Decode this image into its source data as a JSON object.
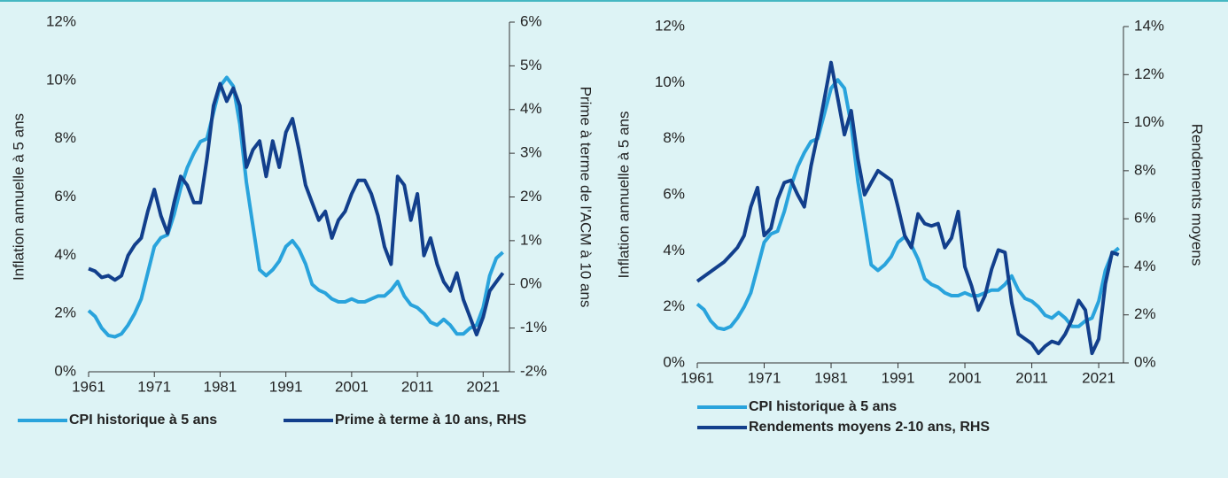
{
  "chart_data": [
    {
      "type": "line",
      "y_label": "Inflation annuelle à 5 ans",
      "y2_label": "Prime à terme de l'ACM à 10 ans",
      "x": [
        1961,
        1962,
        1963,
        1964,
        1965,
        1966,
        1967,
        1968,
        1969,
        1970,
        1971,
        1972,
        1973,
        1974,
        1975,
        1976,
        1977,
        1978,
        1979,
        1980,
        1981,
        1982,
        1983,
        1984,
        1985,
        1986,
        1987,
        1988,
        1989,
        1990,
        1991,
        1992,
        1993,
        1994,
        1995,
        1996,
        1997,
        1998,
        1999,
        2000,
        2001,
        2002,
        2003,
        2004,
        2005,
        2006,
        2007,
        2008,
        2009,
        2010,
        2011,
        2012,
        2013,
        2014,
        2015,
        2016,
        2017,
        2018,
        2019,
        2020,
        2021,
        2022,
        2023,
        2024
      ],
      "series": [
        {
          "name": "CPI historique à 5 ans",
          "color": "#29a3dc",
          "values": [
            2.1,
            1.9,
            1.5,
            1.25,
            1.2,
            1.3,
            1.6,
            2.0,
            2.5,
            3.4,
            4.3,
            4.6,
            4.7,
            5.4,
            6.3,
            7.0,
            7.5,
            7.9,
            8.0,
            8.9,
            9.8,
            10.1,
            9.8,
            8.5,
            6.5,
            5.0,
            3.5,
            3.3,
            3.5,
            3.8,
            4.3,
            4.5,
            4.2,
            3.7,
            3.0,
            2.8,
            2.7,
            2.5,
            2.4,
            2.4,
            2.5,
            2.4,
            2.4,
            2.5,
            2.6,
            2.6,
            2.8,
            3.1,
            2.6,
            2.3,
            2.2,
            2.0,
            1.7,
            1.6,
            1.8,
            1.6,
            1.3,
            1.3,
            1.5,
            1.6,
            2.2,
            3.3,
            3.9,
            4.1
          ]
        },
        {
          "name": "Prime à terme à 10 ans, RHS",
          "color": "#123f8c",
          "axis": "y2",
          "values": [
            0.36,
            0.3,
            0.16,
            0.2,
            0.1,
            0.2,
            0.66,
            0.9,
            1.06,
            1.67,
            2.17,
            1.57,
            1.17,
            1.87,
            2.47,
            2.27,
            1.87,
            1.87,
            2.88,
            4.09,
            4.59,
            4.19,
            4.49,
            4.09,
            2.68,
            3.08,
            3.28,
            2.47,
            3.28,
            2.68,
            3.48,
            3.79,
            3.08,
            2.27,
            1.87,
            1.47,
            1.67,
            1.06,
            1.47,
            1.67,
            2.07,
            2.38,
            2.38,
            2.07,
            1.57,
            0.86,
            0.46,
            2.47,
            2.27,
            1.47,
            2.07,
            0.66,
            1.06,
            0.46,
            0.06,
            -0.15,
            0.26,
            -0.35,
            -0.75,
            -1.15,
            -0.75,
            -0.15,
            0.06,
            0.26
          ]
        }
      ],
      "xlim": [
        1961,
        2025
      ],
      "xticks": [
        1961,
        1971,
        1981,
        1991,
        2001,
        2011,
        2021
      ],
      "ylim": [
        0,
        12
      ],
      "yticks": [
        {
          "value": 0,
          "label": "0%"
        },
        {
          "value": 2,
          "label": "2%"
        },
        {
          "value": 4,
          "label": "4%"
        },
        {
          "value": 6,
          "label": "6%"
        },
        {
          "value": 8,
          "label": "8%"
        },
        {
          "value": 10,
          "label": "10%"
        },
        {
          "value": 12,
          "label": "12%"
        }
      ],
      "y2lim": [
        -2,
        6
      ],
      "y2ticks": [
        {
          "value": -2,
          "label": "-2%"
        },
        {
          "value": -1,
          "label": "-1%"
        },
        {
          "value": 0,
          "label": "0%"
        },
        {
          "value": 1,
          "label": "1%"
        },
        {
          "value": 2,
          "label": "2%"
        },
        {
          "value": 3,
          "label": "3%"
        },
        {
          "value": 4,
          "label": "4%"
        },
        {
          "value": 5,
          "label": "5%"
        },
        {
          "value": 6,
          "label": "6%"
        }
      ],
      "legend": "bottom-row"
    },
    {
      "type": "line",
      "y_label": "Inflation annuelle à 5 ans",
      "y2_label": "Rendements moyens",
      "x": [
        1961,
        1962,
        1963,
        1964,
        1965,
        1966,
        1967,
        1968,
        1969,
        1970,
        1971,
        1972,
        1973,
        1974,
        1975,
        1976,
        1977,
        1978,
        1979,
        1980,
        1981,
        1982,
        1983,
        1984,
        1985,
        1986,
        1987,
        1988,
        1989,
        1990,
        1991,
        1992,
        1993,
        1994,
        1995,
        1996,
        1997,
        1998,
        1999,
        2000,
        2001,
        2002,
        2003,
        2004,
        2005,
        2006,
        2007,
        2008,
        2009,
        2010,
        2011,
        2012,
        2013,
        2014,
        2015,
        2016,
        2017,
        2018,
        2019,
        2020,
        2021,
        2022,
        2023,
        2024
      ],
      "series": [
        {
          "name": "CPI historique à 5 ans",
          "color": "#29a3dc",
          "values": [
            2.1,
            1.9,
            1.5,
            1.25,
            1.2,
            1.3,
            1.6,
            2.0,
            2.5,
            3.4,
            4.3,
            4.6,
            4.7,
            5.4,
            6.3,
            7.0,
            7.5,
            7.9,
            8.0,
            8.9,
            9.8,
            10.1,
            9.8,
            8.5,
            6.5,
            5.0,
            3.5,
            3.3,
            3.5,
            3.8,
            4.3,
            4.5,
            4.2,
            3.7,
            3.0,
            2.8,
            2.7,
            2.5,
            2.4,
            2.4,
            2.5,
            2.4,
            2.4,
            2.5,
            2.6,
            2.6,
            2.8,
            3.1,
            2.6,
            2.3,
            2.2,
            2.0,
            1.7,
            1.6,
            1.8,
            1.6,
            1.3,
            1.3,
            1.5,
            1.6,
            2.2,
            3.3,
            3.9,
            4.1
          ]
        },
        {
          "name": "Rendements moyens 2-10 ans, RHS",
          "color": "#123f8c",
          "axis": "y2",
          "values": [
            3.4,
            3.6,
            3.8,
            4.0,
            4.2,
            4.5,
            4.8,
            5.3,
            6.5,
            7.3,
            5.3,
            5.6,
            6.8,
            7.5,
            7.6,
            7.0,
            6.5,
            8.2,
            9.5,
            11.0,
            12.5,
            11.0,
            9.5,
            10.5,
            8.5,
            7.0,
            7.5,
            8.0,
            7.8,
            7.6,
            6.5,
            5.3,
            4.8,
            6.2,
            5.8,
            5.7,
            5.8,
            4.8,
            5.2,
            6.3,
            4.0,
            3.2,
            2.2,
            2.8,
            3.9,
            4.7,
            4.6,
            2.5,
            1.2,
            1.0,
            0.8,
            0.4,
            0.7,
            0.9,
            0.8,
            1.2,
            1.8,
            2.6,
            2.2,
            0.4,
            1.0,
            3.3,
            4.6,
            4.5
          ]
        }
      ],
      "xlim": [
        1961,
        2024.7
      ],
      "xticks": [
        1961,
        1971,
        1981,
        1991,
        2001,
        2011,
        2021
      ],
      "ylim": [
        0,
        12
      ],
      "yticks": [
        {
          "value": 0,
          "label": "0%"
        },
        {
          "value": 2,
          "label": "2%"
        },
        {
          "value": 4,
          "label": "4%"
        },
        {
          "value": 6,
          "label": "6%"
        },
        {
          "value": 8,
          "label": "8%"
        },
        {
          "value": 10,
          "label": "10%"
        },
        {
          "value": 12,
          "label": "12%"
        }
      ],
      "y2lim": [
        0,
        14
      ],
      "y2ticks": [
        {
          "value": 0,
          "label": "0%"
        },
        {
          "value": 2,
          "label": "2%"
        },
        {
          "value": 4,
          "label": "4%"
        },
        {
          "value": 6,
          "label": "6%"
        },
        {
          "value": 8,
          "label": "8%"
        },
        {
          "value": 10,
          "label": "10%"
        },
        {
          "value": 12,
          "label": "12%"
        },
        {
          "value": 14,
          "label": "14%"
        }
      ],
      "legend": "bottom-stacked"
    }
  ]
}
